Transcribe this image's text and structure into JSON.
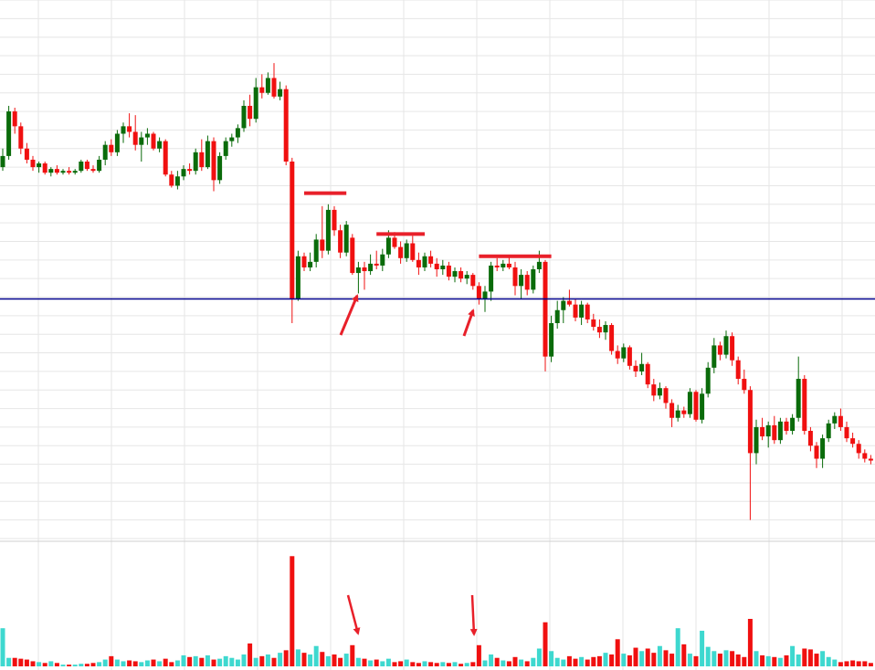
{
  "chart_data": {
    "type": "candlestick",
    "up_color": "#0a6b0a",
    "down_color": "#f01010",
    "volume_up_color": "#3ed8cf",
    "volume_down_color": "#f01010",
    "grid": true,
    "ylim": [
      0,
      29
    ],
    "yticks": [
      0,
      1,
      2,
      3,
      4,
      5,
      6,
      7,
      8,
      9,
      10,
      11,
      12,
      13,
      14,
      15,
      16,
      17,
      18,
      19,
      20,
      21,
      22,
      23,
      24,
      25,
      26,
      27,
      28,
      29
    ],
    "vlim": [
      0,
      14
    ],
    "open": [
      20.0,
      20.6,
      23.0,
      22.2,
      21.0,
      20.4,
      20.0,
      20.2,
      19.7,
      19.9,
      19.7,
      19.8,
      19.7,
      19.8,
      20.3,
      19.9,
      19.8,
      20.4,
      21.2,
      20.8,
      21.8,
      22.2,
      21.9,
      21.2,
      21.6,
      21.8,
      21.0,
      21.4,
      19.6,
      19.0,
      19.5,
      19.9,
      19.8,
      20.8,
      20.0,
      21.4,
      19.3,
      20.6,
      21.4,
      21.6,
      22.1,
      23.3,
      22.6,
      24.3,
      24.0,
      24.8,
      23.8,
      24.2,
      20.3,
      12.9,
      15.2,
      14.6,
      14.9,
      16.1,
      15.5,
      17.7,
      16.6,
      15.4,
      16.2,
      14.3,
      14.6,
      14.4,
      14.8,
      14.7,
      15.3,
      16.2,
      15.7,
      15.1,
      15.9,
      15.0,
      14.6,
      15.2,
      14.8,
      14.5,
      14.7,
      14.1,
      14.4,
      14.0,
      14.2,
      13.6,
      12.9,
      13.3,
      14.7,
      14.6,
      14.8,
      14.6,
      13.6,
      14.2,
      13.4,
      14.5,
      14.9,
      9.8,
      11.6,
      12.3,
      12.8,
      12.6,
      11.9,
      12.6,
      11.8,
      11.4,
      11.1,
      11.5,
      10.1,
      9.7,
      10.3,
      9.3,
      9.0,
      9.4,
      8.3,
      7.7,
      8.1,
      7.3,
      6.5,
      6.9,
      6.7,
      7.9,
      6.4,
      7.8,
      9.2,
      10.4,
      9.9,
      10.9,
      9.6,
      8.6,
      8.0,
      4.6,
      6.0,
      5.5,
      6.1,
      5.3,
      6.3,
      5.8,
      6.5,
      8.6,
      5.8,
      5.0,
      4.3,
      5.4,
      6.2,
      6.6,
      6.0,
      5.4,
      5.1,
      4.6,
      4.3
    ],
    "high": [
      21.0,
      23.3,
      23.2,
      22.4,
      21.3,
      20.6,
      20.3,
      20.3,
      20.0,
      20.1,
      19.9,
      20.0,
      19.9,
      20.4,
      20.4,
      20.1,
      20.6,
      21.4,
      21.5,
      22.0,
      22.4,
      22.9,
      22.8,
      21.9,
      22.1,
      21.9,
      21.6,
      21.5,
      19.8,
      19.8,
      20.1,
      20.2,
      21.0,
      21.5,
      21.7,
      21.6,
      20.8,
      21.6,
      21.8,
      22.3,
      23.6,
      23.9,
      24.8,
      25.0,
      25.1,
      25.6,
      24.6,
      24.4,
      20.5,
      15.5,
      15.4,
      15.4,
      16.4,
      17.9,
      18.0,
      17.9,
      16.9,
      17.1,
      16.4,
      14.9,
      14.9,
      15.3,
      15.5,
      15.6,
      16.6,
      16.5,
      16.0,
      16.1,
      16.3,
      15.4,
      15.4,
      15.5,
      15.1,
      15.0,
      14.9,
      14.6,
      14.6,
      14.4,
      14.3,
      13.8,
      13.6,
      14.9,
      15.1,
      15.0,
      15.2,
      14.9,
      14.5,
      14.4,
      14.7,
      15.5,
      15.0,
      12.0,
      12.8,
      13.0,
      13.4,
      12.9,
      12.8,
      12.7,
      12.1,
      11.8,
      11.7,
      11.6,
      10.4,
      10.5,
      10.4,
      9.6,
      10.0,
      9.5,
      8.6,
      8.4,
      8.2,
      7.5,
      7.2,
      7.1,
      8.1,
      8.0,
      8.1,
      9.5,
      10.8,
      10.6,
      11.2,
      11.1,
      9.8,
      9.1,
      8.2,
      6.4,
      6.5,
      6.3,
      6.6,
      6.5,
      6.5,
      6.7,
      9.8,
      8.8,
      6.0,
      5.2,
      5.6,
      6.4,
      6.8,
      7.0,
      6.3,
      5.7,
      5.3,
      4.8,
      4.5
    ],
    "low": [
      19.8,
      20.4,
      21.8,
      20.7,
      20.2,
      19.8,
      19.7,
      19.6,
      19.5,
      19.6,
      19.6,
      19.6,
      19.6,
      19.7,
      19.8,
      19.7,
      19.7,
      20.1,
      20.6,
      20.6,
      21.3,
      21.6,
      20.9,
      20.3,
      21.2,
      20.9,
      20.8,
      19.5,
      18.9,
      18.8,
      19.3,
      19.6,
      19.6,
      19.8,
      19.9,
      18.7,
      19.1,
      20.4,
      21.1,
      21.3,
      21.9,
      22.2,
      22.4,
      23.7,
      23.9,
      23.7,
      23.6,
      20.1,
      11.6,
      12.8,
      14.4,
      14.4,
      14.6,
      15.1,
      15.3,
      16.3,
      15.1,
      15.2,
      14.2,
      13.2,
      13.4,
      14.2,
      14.5,
      14.4,
      15.1,
      15.6,
      14.8,
      14.9,
      14.9,
      14.2,
      14.4,
      14.6,
      14.1,
      14.2,
      13.9,
      13.8,
      13.8,
      13.7,
      13.4,
      12.6,
      12.2,
      12.8,
      14.4,
      14.4,
      14.5,
      13.1,
      12.9,
      13.1,
      13.2,
      14.3,
      9.0,
      9.5,
      11.3,
      11.6,
      12.5,
      11.7,
      11.5,
      11.6,
      11.2,
      10.8,
      10.7,
      9.9,
      9.4,
      9.5,
      9.1,
      8.7,
      8.8,
      8.1,
      7.4,
      7.5,
      7.0,
      6.0,
      6.3,
      6.5,
      6.5,
      6.3,
      6.2,
      7.6,
      8.9,
      9.6,
      9.7,
      9.3,
      8.3,
      7.8,
      1.0,
      4.0,
      5.3,
      4.9,
      5.1,
      5.1,
      5.6,
      5.6,
      6.3,
      5.6,
      4.7,
      3.8,
      3.8,
      5.2,
      5.9,
      5.8,
      5.2,
      4.9,
      4.3,
      4.1,
      4.0
    ],
    "close": [
      20.6,
      23.0,
      22.2,
      21.0,
      20.4,
      20.0,
      20.2,
      19.7,
      19.9,
      19.7,
      19.8,
      19.7,
      19.8,
      20.3,
      19.9,
      19.8,
      20.4,
      21.2,
      20.8,
      21.8,
      22.2,
      21.9,
      21.2,
      21.6,
      21.8,
      21.0,
      21.4,
      19.6,
      19.0,
      19.5,
      19.9,
      19.8,
      20.8,
      20.0,
      21.4,
      19.3,
      20.6,
      21.4,
      21.6,
      22.1,
      23.3,
      22.6,
      24.3,
      24.0,
      24.8,
      23.8,
      24.2,
      20.3,
      12.9,
      15.2,
      14.6,
      14.9,
      16.1,
      15.5,
      17.7,
      16.6,
      15.4,
      16.9,
      14.3,
      14.6,
      14.4,
      14.8,
      14.7,
      15.3,
      16.2,
      15.7,
      15.1,
      15.9,
      15.0,
      14.6,
      15.2,
      14.8,
      14.5,
      14.7,
      14.1,
      14.4,
      14.0,
      14.2,
      13.6,
      12.9,
      13.3,
      14.7,
      14.6,
      14.8,
      14.6,
      13.6,
      14.2,
      13.4,
      14.5,
      14.9,
      9.8,
      11.6,
      12.3,
      12.8,
      12.6,
      11.9,
      12.6,
      11.8,
      11.4,
      11.1,
      11.5,
      10.1,
      9.7,
      10.3,
      9.3,
      9.0,
      9.4,
      8.3,
      7.7,
      8.1,
      7.3,
      6.5,
      6.9,
      6.7,
      7.9,
      6.4,
      7.8,
      9.2,
      10.4,
      9.9,
      10.9,
      9.6,
      8.6,
      8.0,
      4.6,
      6.0,
      5.5,
      6.1,
      5.3,
      6.3,
      5.8,
      6.5,
      8.6,
      5.8,
      5.0,
      4.3,
      5.4,
      6.2,
      6.6,
      6.0,
      5.4,
      5.1,
      4.6,
      4.3,
      4.2
    ],
    "volume": [
      4.5,
      1.0,
      1.0,
      0.9,
      0.8,
      0.6,
      0.5,
      0.4,
      0.6,
      0.4,
      0.2,
      0.2,
      0.2,
      0.3,
      0.3,
      0.4,
      0.5,
      0.8,
      1.2,
      0.8,
      0.6,
      0.7,
      0.6,
      0.5,
      0.7,
      0.8,
      0.6,
      0.9,
      0.5,
      0.7,
      1.3,
      1.1,
      1.2,
      1.0,
      1.3,
      0.8,
      0.9,
      1.2,
      1.0,
      0.8,
      1.4,
      2.7,
      1.0,
      1.2,
      1.4,
      1.0,
      1.6,
      1.9,
      13.0,
      2.0,
      1.6,
      1.4,
      2.4,
      1.7,
      1.2,
      1.4,
      1.0,
      1.5,
      2.5,
      1.0,
      0.9,
      0.7,
      0.8,
      0.6,
      0.9,
      0.5,
      0.6,
      0.8,
      0.5,
      0.4,
      0.6,
      0.5,
      0.4,
      0.5,
      0.4,
      0.5,
      0.3,
      0.4,
      0.5,
      2.5,
      0.7,
      1.4,
      1.0,
      0.7,
      0.6,
      1.1,
      0.8,
      0.6,
      1.0,
      2.1,
      5.2,
      1.8,
      1.0,
      0.8,
      1.2,
      0.9,
      1.1,
      0.8,
      1.1,
      1.2,
      1.6,
      1.4,
      3.2,
      1.5,
      1.3,
      2.2,
      1.8,
      2.1,
      1.6,
      2.4,
      1.9,
      1.5,
      4.5,
      2.6,
      1.5,
      1.2,
      4.2,
      2.3,
      1.8,
      1.5,
      1.9,
      1.8,
      1.4,
      1.1,
      5.6,
      1.8,
      1.3,
      1.2,
      1.1,
      1.0,
      1.3,
      2.4,
      1.4,
      2.1,
      2.0,
      1.5,
      1.8,
      1.1,
      0.8,
      0.5,
      0.6,
      0.7,
      0.6,
      0.6,
      0.4
    ],
    "hlines": [
      {
        "value": 12.9,
        "color": "#00008b"
      }
    ],
    "levels": [
      {
        "from": 50,
        "to": 57,
        "value": 18.6,
        "color": "#e8202a"
      },
      {
        "from": 62,
        "to": 70,
        "value": 16.4,
        "color": "#e8202a"
      },
      {
        "from": 79,
        "to": 91,
        "value": 15.2,
        "color": "#e8202a"
      }
    ]
  }
}
